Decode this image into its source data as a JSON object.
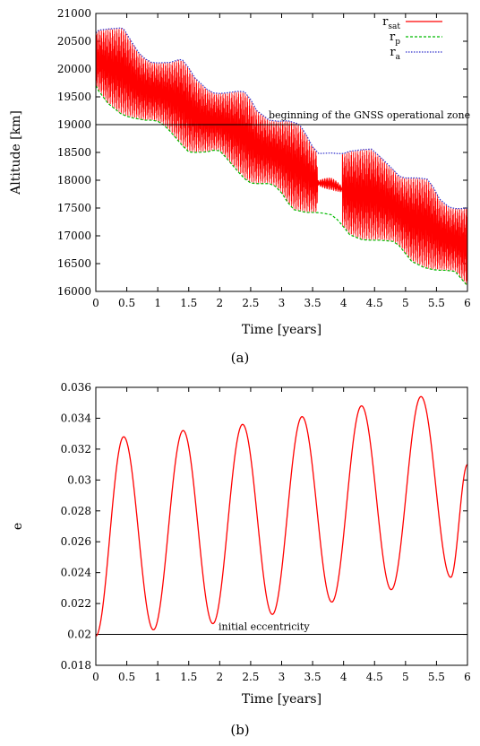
{
  "chart_data": [
    {
      "panel": "a",
      "type": "line",
      "caption": "(a)",
      "xlabel": "Time [years]",
      "ylabel": "Altitude [km]",
      "xlim": [
        0,
        6
      ],
      "ylim": [
        16000,
        21000
      ],
      "x_ticks": [
        "0",
        "0.5",
        "1",
        "1.5",
        "2",
        "2.5",
        "3",
        "3.5",
        "4",
        "4.5",
        "5",
        "5.5",
        "6"
      ],
      "y_ticks": [
        "16000",
        "16500",
        "17000",
        "17500",
        "18000",
        "18500",
        "19000",
        "19500",
        "20000",
        "20500",
        "21000"
      ],
      "legend_position": "top-right",
      "legend": [
        {
          "name": "r",
          "sub": "sat",
          "color": "#ff0000",
          "style": "solid"
        },
        {
          "name": "r",
          "sub": "p",
          "color": "#00bb00",
          "style": "dashed"
        },
        {
          "name": "r",
          "sub": "a",
          "color": "#3333cc",
          "style": "dotted"
        }
      ],
      "hline": {
        "y": 19000,
        "label": "beginning of the GNSS operational zone"
      },
      "series": [
        {
          "key": "r_a",
          "color": "#3333cc",
          "x": [
            0,
            0.05,
            0.2,
            0.4,
            0.45,
            0.5,
            0.6,
            0.7,
            0.8,
            0.9,
            1.0,
            1.2,
            1.35,
            1.4,
            1.5,
            1.6,
            1.8,
            1.9,
            2.0,
            2.1,
            2.3,
            2.4,
            2.5,
            2.6,
            2.8,
            2.95,
            3.1,
            3.25,
            3.3,
            3.4,
            3.5,
            3.6,
            3.8,
            3.9,
            4.0,
            4.1,
            4.3,
            4.45,
            4.6,
            4.8,
            4.9,
            5.0,
            5.1,
            5.2,
            5.35,
            5.45,
            5.55,
            5.7,
            5.8,
            5.9,
            6.0
          ],
          "y": [
            20650,
            20700,
            20720,
            20740,
            20720,
            20630,
            20450,
            20280,
            20180,
            20120,
            20110,
            20120,
            20170,
            20160,
            20020,
            19840,
            19630,
            19570,
            19560,
            19570,
            19600,
            19590,
            19450,
            19250,
            19080,
            19060,
            19070,
            19020,
            18980,
            18810,
            18600,
            18480,
            18490,
            18480,
            18480,
            18520,
            18550,
            18560,
            18410,
            18190,
            18070,
            18040,
            18040,
            18040,
            18020,
            17870,
            17660,
            17520,
            17490,
            17490,
            17500
          ]
        },
        {
          "key": "r_p",
          "color": "#00bb00",
          "x": [
            0,
            0.05,
            0.2,
            0.4,
            0.5,
            0.6,
            0.8,
            0.9,
            1.0,
            1.1,
            1.2,
            1.3,
            1.4,
            1.5,
            1.6,
            1.8,
            1.9,
            2.0,
            2.1,
            2.3,
            2.4,
            2.5,
            2.6,
            2.8,
            2.9,
            3.0,
            3.1,
            3.2,
            3.4,
            3.55,
            3.65,
            3.8,
            3.9,
            4.0,
            4.1,
            4.3,
            4.45,
            4.6,
            4.8,
            4.9,
            5.0,
            5.1,
            5.3,
            5.45,
            5.55,
            5.65,
            5.8,
            5.9,
            6.0
          ],
          "y": [
            19700,
            19600,
            19380,
            19200,
            19150,
            19120,
            19080,
            19080,
            19060,
            18990,
            18880,
            18750,
            18620,
            18510,
            18500,
            18510,
            18540,
            18530,
            18410,
            18150,
            18030,
            17950,
            17940,
            17940,
            17890,
            17770,
            17600,
            17470,
            17420,
            17420,
            17410,
            17380,
            17290,
            17160,
            17020,
            16930,
            16920,
            16920,
            16900,
            16820,
            16680,
            16540,
            16430,
            16390,
            16380,
            16380,
            16360,
            16230,
            16100
          ]
        },
        {
          "key": "r_sat",
          "color": "#ff0000",
          "style": "oscillation between r_p and r_a"
        }
      ]
    },
    {
      "panel": "b",
      "type": "line",
      "caption": "(b)",
      "xlabel": "Time [years]",
      "ylabel": "e",
      "xlim": [
        0,
        6
      ],
      "ylim": [
        0.018,
        0.036
      ],
      "x_ticks": [
        "0",
        "0.5",
        "1",
        "1.5",
        "2",
        "2.5",
        "3",
        "3.5",
        "4",
        "4.5",
        "5",
        "5.5",
        "6"
      ],
      "y_ticks": [
        "0.018",
        "0.02",
        "0.022",
        "0.024",
        "0.026",
        "0.028",
        "0.03",
        "0.032",
        "0.034",
        "0.036"
      ],
      "hline": {
        "y": 0.02,
        "label": "initial eccentricity"
      },
      "series": [
        {
          "key": "e",
          "color": "#ff0000",
          "period_years": 0.96,
          "first_max_at": 0.45,
          "maxima": [
            0.0328,
            0.0332,
            0.0336,
            0.0341,
            0.0348,
            0.0354
          ],
          "minima": [
            0.0203,
            0.0207,
            0.0213,
            0.0221,
            0.0229,
            0.0237
          ],
          "start": 0.0199,
          "end": 0.031
        }
      ]
    }
  ]
}
